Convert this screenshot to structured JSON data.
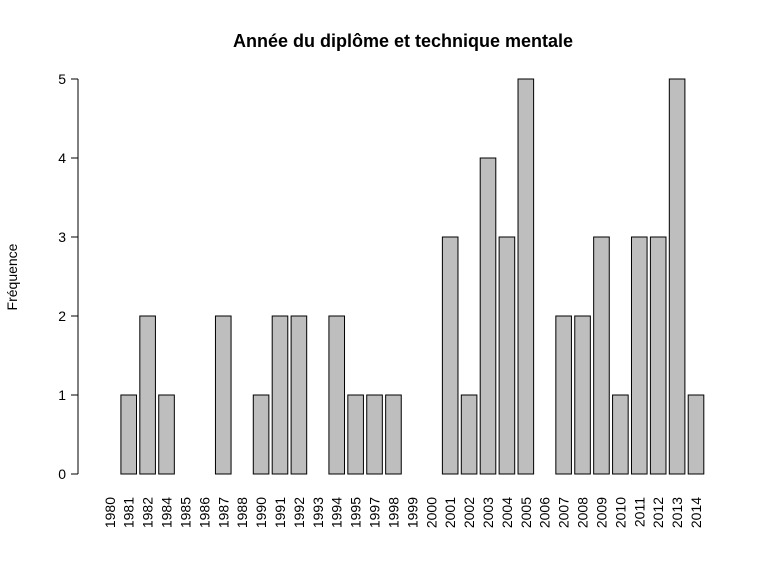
{
  "chart_data": {
    "type": "bar",
    "title": "Année du diplôme et technique mentale",
    "xlabel": "",
    "ylabel": "Fréquence",
    "ylim": [
      0,
      5
    ],
    "yticks": [
      0,
      1,
      2,
      3,
      4,
      5
    ],
    "bar_color": "#bebebe",
    "border_color": "#000000",
    "grid": false,
    "categories": [
      "1980",
      "1981",
      "1982",
      "1984",
      "1985",
      "1986",
      "1987",
      "1988",
      "1990",
      "1991",
      "1992",
      "1993",
      "1994",
      "1995",
      "1997",
      "1998",
      "1999",
      "2000",
      "2001",
      "2002",
      "2003",
      "2004",
      "2005",
      "2006",
      "2007",
      "2008",
      "2009",
      "2010",
      "2011",
      "2012",
      "2013",
      "2014"
    ],
    "values": [
      0,
      1,
      2,
      1,
      0,
      0,
      2,
      0,
      1,
      2,
      2,
      0,
      2,
      1,
      1,
      1,
      0,
      0,
      3,
      1,
      4,
      3,
      5,
      0,
      2,
      2,
      3,
      1,
      3,
      3,
      5,
      1
    ]
  }
}
